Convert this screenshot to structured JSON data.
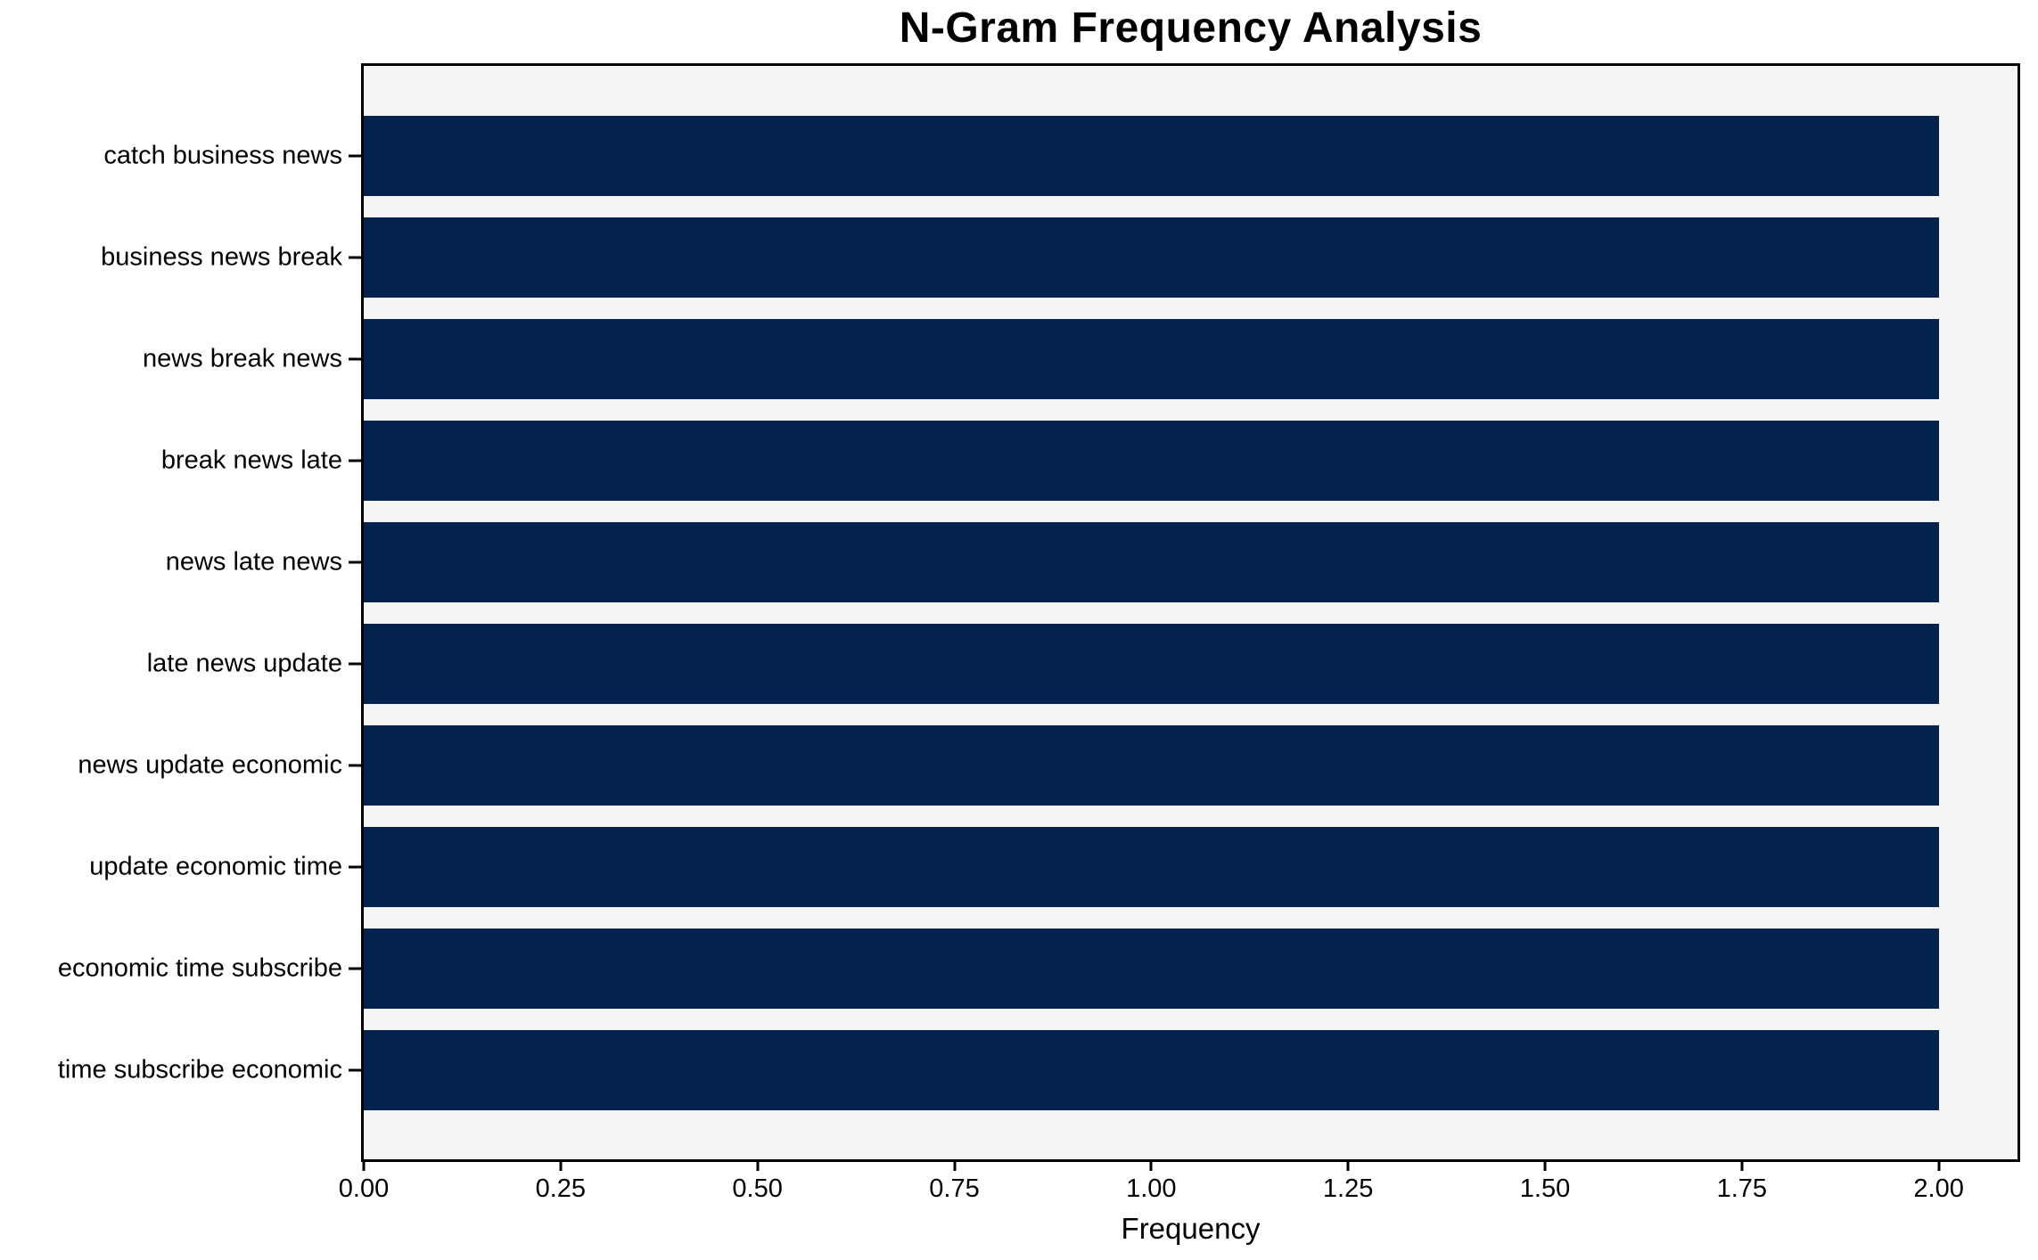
{
  "chart_data": {
    "type": "bar",
    "orientation": "horizontal",
    "title": "N-Gram Frequency Analysis",
    "xlabel": "Frequency",
    "ylabel": "",
    "categories": [
      "catch business news",
      "business news break",
      "news break news",
      "break news late",
      "news late news",
      "late news update",
      "news update economic",
      "update economic time",
      "economic time subscribe",
      "time subscribe economic"
    ],
    "values": [
      2,
      2,
      2,
      2,
      2,
      2,
      2,
      2,
      2,
      2
    ],
    "xlim": [
      0,
      2.1
    ],
    "xticks": [
      0,
      0.25,
      0.5,
      0.75,
      1.0,
      1.25,
      1.5,
      1.75,
      2.0
    ],
    "xtick_labels": [
      "0.00",
      "0.25",
      "0.50",
      "0.75",
      "1.00",
      "1.25",
      "1.50",
      "1.75",
      "2.00"
    ],
    "grid": false,
    "legend_position": "none",
    "colors": {
      "bar": "#03224c",
      "plot_bg": "#f5f5f5",
      "figure_bg": "#ffffff",
      "axis": "#000000",
      "text": "#000000"
    }
  }
}
